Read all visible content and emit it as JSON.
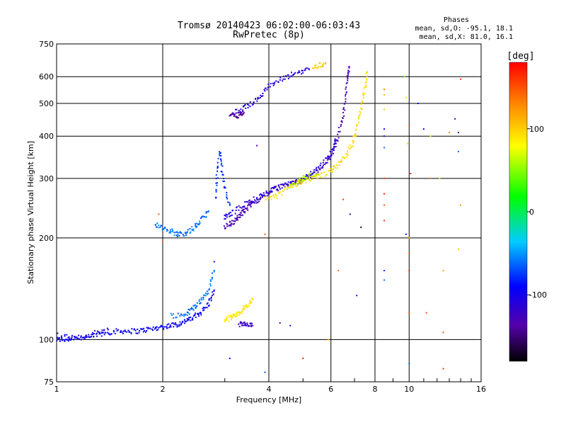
{
  "chart_data": {
    "type": "scatter",
    "title": "Tromsø 20140423 06:02:00-06:03:43",
    "subtitle": "RwPretec (8p)",
    "phases_title": "Phases",
    "phases_lines": [
      "mean, sd,O: -95.1, 18.1",
      "mean, sd,X:  81.0, 16.1"
    ],
    "xlabel": "Frequency [MHz]",
    "ylabel": "Stationary phase Virtual Height [km]",
    "x_scale": "log",
    "y_scale": "log",
    "xlim": [
      1,
      16
    ],
    "ylim": [
      75,
      750
    ],
    "x_ticks": [
      1,
      2,
      4,
      6,
      8,
      10,
      16
    ],
    "x_tick_labels": [
      "1",
      "2",
      "4",
      "6",
      "8",
      "10",
      "16"
    ],
    "y_ticks": [
      75,
      100,
      200,
      300,
      400,
      500,
      600,
      750
    ],
    "y_tick_labels": [
      "75",
      "100",
      "200",
      "300",
      "400",
      "500",
      "600",
      "750"
    ],
    "grid": true,
    "colorbar": {
      "label": "[deg]",
      "range": [
        -180,
        180
      ],
      "ticks": [
        100,
        0,
        -100
      ],
      "tick_labels": [
        "100",
        "0",
        "-100"
      ]
    },
    "traces": [
      {
        "phase": -95,
        "spread": 8,
        "points": [
          [
            1.0,
            100
          ],
          [
            1.05,
            100
          ],
          [
            1.1,
            101
          ],
          [
            1.2,
            101
          ],
          [
            1.3,
            103
          ],
          [
            1.4,
            105
          ],
          [
            1.5,
            106
          ],
          [
            1.6,
            106
          ],
          [
            1.7,
            106
          ],
          [
            1.8,
            107
          ],
          [
            1.9,
            108
          ],
          [
            2.0,
            109
          ],
          [
            2.1,
            110
          ],
          [
            2.2,
            111
          ],
          [
            2.3,
            113
          ],
          [
            2.4,
            115
          ],
          [
            2.5,
            118
          ],
          [
            2.6,
            122
          ],
          [
            2.7,
            128
          ],
          [
            2.8,
            140
          ]
        ]
      },
      {
        "phase": -110,
        "spread": 16,
        "points": [
          [
            1.0,
            103
          ],
          [
            1.1,
            101
          ],
          [
            1.2,
            102
          ],
          [
            1.3,
            105
          ],
          [
            1.4,
            107
          ]
        ]
      },
      {
        "phase": -60,
        "spread": 10,
        "points": [
          [
            2.1,
            118
          ],
          [
            2.3,
            118
          ],
          [
            2.4,
            122
          ],
          [
            2.5,
            127
          ],
          [
            2.6,
            132
          ],
          [
            2.7,
            140
          ],
          [
            2.8,
            160
          ]
        ]
      },
      {
        "phase": 90,
        "spread": 5,
        "points": [
          [
            3.0,
            114
          ],
          [
            3.1,
            116
          ],
          [
            3.2,
            118
          ],
          [
            3.3,
            120
          ],
          [
            3.4,
            123
          ],
          [
            3.5,
            127
          ],
          [
            3.6,
            132
          ]
        ]
      },
      {
        "phase": -120,
        "spread": 6,
        "points": [
          [
            3.3,
            111
          ],
          [
            3.4,
            111
          ],
          [
            3.5,
            110
          ],
          [
            3.6,
            110
          ]
        ]
      },
      {
        "phase": -60,
        "spread": 12,
        "points": [
          [
            1.9,
            220
          ],
          [
            2.0,
            215
          ],
          [
            2.1,
            210
          ],
          [
            2.2,
            205
          ],
          [
            2.3,
            206
          ],
          [
            2.4,
            210
          ],
          [
            2.5,
            218
          ],
          [
            2.6,
            228
          ],
          [
            2.7,
            240
          ]
        ]
      },
      {
        "phase": -80,
        "spread": 8,
        "points": [
          [
            2.82,
            260
          ],
          [
            2.85,
            300
          ],
          [
            2.9,
            360
          ],
          [
            2.95,
            320
          ],
          [
            3.0,
            280
          ],
          [
            3.1,
            250
          ]
        ]
      },
      {
        "phase": -130,
        "spread": 6,
        "points": [
          [
            3.0,
            215
          ],
          [
            3.1,
            220
          ],
          [
            3.2,
            225
          ],
          [
            3.3,
            232
          ],
          [
            3.4,
            240
          ],
          [
            3.5,
            248
          ],
          [
            3.6,
            255
          ],
          [
            3.8,
            262
          ],
          [
            4.0,
            272
          ],
          [
            4.2,
            280
          ],
          [
            4.5,
            288
          ],
          [
            4.8,
            293
          ],
          [
            5.0,
            298
          ],
          [
            5.3,
            305
          ],
          [
            5.6,
            318
          ],
          [
            5.9,
            340
          ],
          [
            6.1,
            365
          ],
          [
            6.3,
            400
          ],
          [
            6.5,
            460
          ],
          [
            6.6,
            520
          ],
          [
            6.7,
            600
          ],
          [
            6.75,
            640
          ]
        ]
      },
      {
        "phase": -110,
        "spread": 6,
        "points": [
          [
            3.0,
            230
          ],
          [
            3.1,
            235
          ],
          [
            3.3,
            245
          ],
          [
            3.5,
            255
          ],
          [
            3.7,
            262
          ],
          [
            3.9,
            270
          ],
          [
            4.2,
            280
          ],
          [
            4.6,
            290
          ],
          [
            5.0,
            300
          ],
          [
            5.3,
            310
          ],
          [
            5.6,
            325
          ],
          [
            5.9,
            345
          ],
          [
            6.1,
            370
          ],
          [
            6.2,
            390
          ]
        ]
      },
      {
        "phase": 95,
        "spread": 6,
        "points": [
          [
            3.9,
            260
          ],
          [
            4.2,
            265
          ],
          [
            4.5,
            280
          ],
          [
            4.8,
            290
          ],
          [
            5.0,
            295
          ],
          [
            5.3,
            300
          ],
          [
            5.6,
            305
          ],
          [
            6.0,
            315
          ],
          [
            6.3,
            330
          ],
          [
            6.6,
            350
          ],
          [
            6.9,
            380
          ],
          [
            7.1,
            420
          ],
          [
            7.3,
            480
          ],
          [
            7.5,
            560
          ],
          [
            7.6,
            620
          ]
        ]
      },
      {
        "phase": 60,
        "spread": 5,
        "points": [
          [
            4.5,
            280
          ],
          [
            4.8,
            292
          ],
          [
            5.0,
            300
          ],
          [
            5.2,
            305
          ],
          [
            5.5,
            310
          ]
        ]
      },
      {
        "phase": -110,
        "spread": 7,
        "points": [
          [
            3.2,
            470
          ],
          [
            3.4,
            485
          ],
          [
            3.6,
            500
          ],
          [
            3.8,
            530
          ],
          [
            4.0,
            560
          ],
          [
            4.3,
            585
          ],
          [
            4.6,
            605
          ],
          [
            4.9,
            620
          ],
          [
            5.2,
            630
          ]
        ]
      },
      {
        "phase": 100,
        "spread": 5,
        "points": [
          [
            5.3,
            640
          ],
          [
            5.6,
            650
          ],
          [
            5.8,
            655
          ]
        ]
      },
      {
        "phase": -140,
        "spread": 4,
        "points": [
          [
            3.1,
            465
          ],
          [
            3.2,
            460
          ],
          [
            3.3,
            462
          ],
          [
            3.4,
            470
          ]
        ]
      }
    ],
    "scattered_points": [
      {
        "x": 2.0,
        "y": 195,
        "phase": 140
      },
      {
        "x": 1.95,
        "y": 235,
        "phase": 150
      },
      {
        "x": 2.8,
        "y": 170,
        "phase": -110
      },
      {
        "x": 3.1,
        "y": 88,
        "phase": -90
      },
      {
        "x": 3.9,
        "y": 80,
        "phase": -70
      },
      {
        "x": 3.7,
        "y": 375,
        "phase": -130
      },
      {
        "x": 3.9,
        "y": 205,
        "phase": 150
      },
      {
        "x": 4.3,
        "y": 112,
        "phase": -130
      },
      {
        "x": 4.6,
        "y": 110,
        "phase": -120
      },
      {
        "x": 5.0,
        "y": 88,
        "phase": 170
      },
      {
        "x": 5.9,
        "y": 100,
        "phase": 120
      },
      {
        "x": 6.3,
        "y": 160,
        "phase": 140
      },
      {
        "x": 6.5,
        "y": 260,
        "phase": 160
      },
      {
        "x": 6.8,
        "y": 235,
        "phase": -150
      },
      {
        "x": 7.1,
        "y": 135,
        "phase": -120
      },
      {
        "x": 7.3,
        "y": 215,
        "phase": -170
      },
      {
        "x": 8.5,
        "y": 550,
        "phase": 140
      },
      {
        "x": 8.5,
        "y": 530,
        "phase": 110
      },
      {
        "x": 8.5,
        "y": 480,
        "phase": 100
      },
      {
        "x": 8.5,
        "y": 420,
        "phase": -100
      },
      {
        "x": 8.5,
        "y": 400,
        "phase": -120
      },
      {
        "x": 8.5,
        "y": 370,
        "phase": -60
      },
      {
        "x": 8.5,
        "y": 300,
        "phase": 160
      },
      {
        "x": 8.5,
        "y": 270,
        "phase": 170
      },
      {
        "x": 8.5,
        "y": 250,
        "phase": 150
      },
      {
        "x": 8.5,
        "y": 225,
        "phase": 165
      },
      {
        "x": 8.5,
        "y": 160,
        "phase": -80
      },
      {
        "x": 8.5,
        "y": 150,
        "phase": -60
      },
      {
        "x": 9.7,
        "y": 600,
        "phase": 40
      },
      {
        "x": 9.8,
        "y": 520,
        "phase": 90
      },
      {
        "x": 9.9,
        "y": 380,
        "phase": 100
      },
      {
        "x": 10.0,
        "y": 430,
        "phase": 150
      },
      {
        "x": 10.1,
        "y": 310,
        "phase": 170
      },
      {
        "x": 9.8,
        "y": 205,
        "phase": -110
      },
      {
        "x": 10.0,
        "y": 200,
        "phase": 120
      },
      {
        "x": 10.0,
        "y": 180,
        "phase": 150
      },
      {
        "x": 10.0,
        "y": 160,
        "phase": 160
      },
      {
        "x": 10.0,
        "y": 120,
        "phase": 150
      },
      {
        "x": 10.0,
        "y": 85,
        "phase": -60
      },
      {
        "x": 10.6,
        "y": 500,
        "phase": -100
      },
      {
        "x": 11.0,
        "y": 420,
        "phase": -90
      },
      {
        "x": 11.5,
        "y": 400,
        "phase": 70
      },
      {
        "x": 11.5,
        "y": 300,
        "phase": 140
      },
      {
        "x": 11.2,
        "y": 120,
        "phase": 150
      },
      {
        "x": 12.2,
        "y": 300,
        "phase": 100
      },
      {
        "x": 12.5,
        "y": 160,
        "phase": 120
      },
      {
        "x": 12.5,
        "y": 105,
        "phase": 150
      },
      {
        "x": 12.5,
        "y": 82,
        "phase": 160
      },
      {
        "x": 13.0,
        "y": 410,
        "phase": 130
      },
      {
        "x": 13.5,
        "y": 450,
        "phase": -120
      },
      {
        "x": 13.8,
        "y": 410,
        "phase": -150
      },
      {
        "x": 13.8,
        "y": 360,
        "phase": -60
      },
      {
        "x": 13.8,
        "y": 185,
        "phase": 100
      },
      {
        "x": 14.0,
        "y": 590,
        "phase": 160
      },
      {
        "x": 14.0,
        "y": 250,
        "phase": 120
      }
    ]
  }
}
